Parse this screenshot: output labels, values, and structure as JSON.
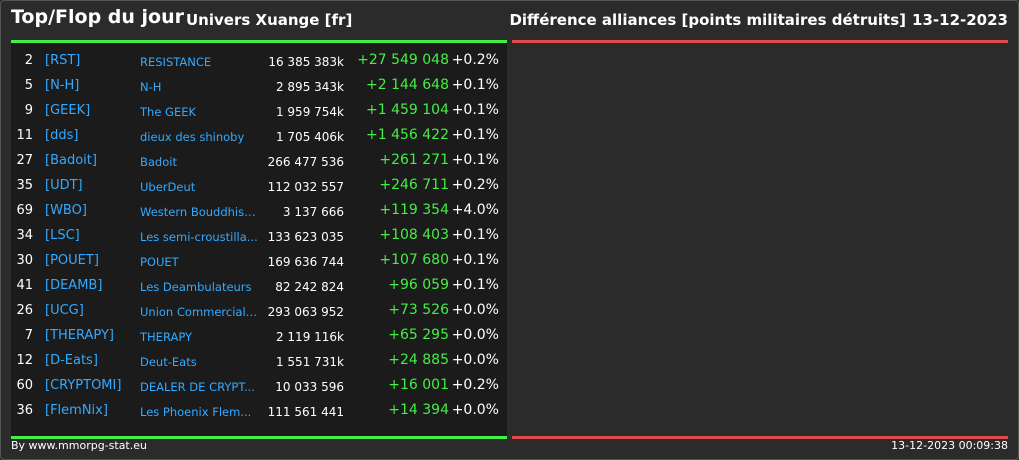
{
  "header": {
    "title": "Top/Flop du jour",
    "universe": "Univers Xuange [fr]",
    "metric": "Différence alliances [points militaires détruits]",
    "date": "13-12-2023"
  },
  "top": [
    {
      "rank": "2",
      "tag": "[RST]",
      "name": "RESISTANCE",
      "total": "16 385 383k",
      "delta": "+27 549 048",
      "pct": "+0.2%"
    },
    {
      "rank": "5",
      "tag": "[N-H]",
      "name": "N-H",
      "total": "2 895 343k",
      "delta": "+2 144 648",
      "pct": "+0.1%"
    },
    {
      "rank": "9",
      "tag": "[GEEK]",
      "name": "The GEEK",
      "total": "1 959 754k",
      "delta": "+1 459 104",
      "pct": "+0.1%"
    },
    {
      "rank": "11",
      "tag": "[dds]",
      "name": "dieux des shinoby",
      "total": "1 705 406k",
      "delta": "+1 456 422",
      "pct": "+0.1%"
    },
    {
      "rank": "27",
      "tag": "[Badoit]",
      "name": "Badoit",
      "total": "266 477 536",
      "delta": "+261 271",
      "pct": "+0.1%"
    },
    {
      "rank": "35",
      "tag": "[UDT]",
      "name": "UberDeut",
      "total": "112 032 557",
      "delta": "+246 711",
      "pct": "+0.2%"
    },
    {
      "rank": "69",
      "tag": "[WBO]",
      "name": "Western Bouddhist ...",
      "total": "3 137 666",
      "delta": "+119 354",
      "pct": "+4.0%"
    },
    {
      "rank": "34",
      "tag": "[LSC]",
      "name": "Les semi-croustilla...",
      "total": "133 623 035",
      "delta": "+108 403",
      "pct": "+0.1%"
    },
    {
      "rank": "30",
      "tag": "[POUET]",
      "name": "POUET",
      "total": "169 636 744",
      "delta": "+107 680",
      "pct": "+0.1%"
    },
    {
      "rank": "41",
      "tag": "[DEAMB]",
      "name": "Les Deambulateurs",
      "total": "82 242 824",
      "delta": "+96 059",
      "pct": "+0.1%"
    },
    {
      "rank": "26",
      "tag": "[UCG]",
      "name": "Union Commerciale...",
      "total": "293 063 952",
      "delta": "+73 526",
      "pct": "+0.0%"
    },
    {
      "rank": "7",
      "tag": "[THERAPY]",
      "name": "THERAPY",
      "total": "2 119 116k",
      "delta": "+65 295",
      "pct": "+0.0%"
    },
    {
      "rank": "12",
      "tag": "[D-Eats]",
      "name": "Deut-Eats",
      "total": "1 551 731k",
      "delta": "+24 885",
      "pct": "+0.0%"
    },
    {
      "rank": "60",
      "tag": "[CRYPTOMI]",
      "name": "DEALER DE CRYPT...",
      "total": "10 033 596",
      "delta": "+16 001",
      "pct": "+0.2%"
    },
    {
      "rank": "36",
      "tag": "[FlemNix]",
      "name": "Les Phoenix Flem...",
      "total": "111 561 441",
      "delta": "+14 394",
      "pct": "+0.0%"
    }
  ],
  "footer": {
    "credit": "By www.mmorpg-stat.eu",
    "timestamp": "13-12-2023 00:09:38"
  },
  "colors": {
    "background": "#2b2b2b",
    "panel_left": "#1b1b1b",
    "top_border": "#44ee44",
    "flop_border": "#e34a4a",
    "link": "#33aaff",
    "gain": "#44ee44"
  }
}
